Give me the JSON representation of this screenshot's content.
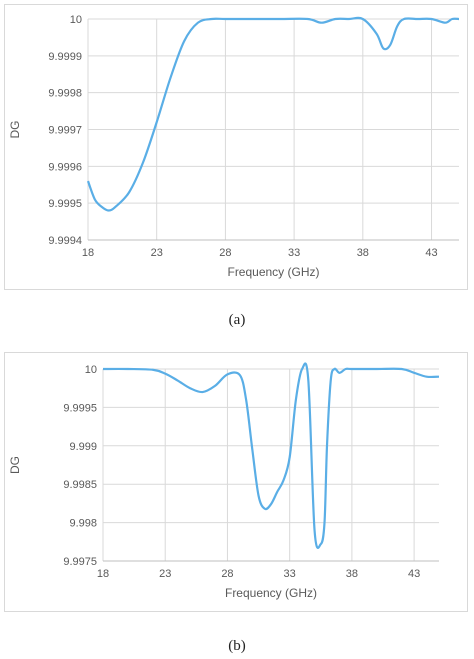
{
  "chart_data": [
    {
      "type": "line",
      "xlabel": "Frequency (GHz)",
      "ylabel": "DG",
      "xlim": [
        18,
        45
      ],
      "ylim": [
        9.9994,
        10
      ],
      "xticks": [
        18,
        23,
        28,
        33,
        38,
        43
      ],
      "yticks": [
        9.9994,
        9.9995,
        9.9996,
        9.9997,
        9.9998,
        9.9999,
        10
      ],
      "ytick_labels": [
        "9.9994",
        "9.9995",
        "9.9996",
        "9.9997",
        "9.9998",
        "9.9999",
        "10"
      ],
      "grid": true,
      "color": "#5aaee6",
      "series": [
        {
          "x": [
            18,
            18.5,
            19,
            19.5,
            20,
            21,
            22,
            23,
            24,
            25,
            26,
            27,
            28,
            30,
            32,
            34,
            35,
            36,
            37,
            38,
            39,
            39.5,
            40,
            40.5,
            41,
            42,
            43,
            44,
            44.5,
            45
          ],
          "y": [
            9.99956,
            9.99951,
            9.99949,
            9.99948,
            9.99949,
            9.99953,
            9.99961,
            9.99972,
            9.99984,
            9.99994,
            9.99999,
            10,
            10,
            10,
            10,
            10,
            9.99999,
            10,
            10,
            10,
            9.99996,
            9.99992,
            9.99993,
            9.99998,
            10,
            10,
            10,
            9.99999,
            10,
            10
          ]
        }
      ],
      "caption": "(a)"
    },
    {
      "type": "line",
      "xlabel": "Frequency (GHz)",
      "ylabel": "DG",
      "xlim": [
        18,
        45
      ],
      "ylim": [
        9.9975,
        10
      ],
      "xticks": [
        18,
        23,
        28,
        33,
        38,
        43
      ],
      "yticks": [
        9.9975,
        9.998,
        9.9985,
        9.999,
        9.9995,
        10
      ],
      "ytick_labels": [
        "9.9975",
        "9.998",
        "9.9985",
        "9.999",
        "9.9995",
        "10"
      ],
      "grid": true,
      "color": "#5aaee6",
      "series": [
        {
          "x": [
            18,
            20,
            22,
            23,
            24,
            25,
            26,
            27,
            28,
            29,
            29.5,
            30,
            30.5,
            31,
            31.5,
            32,
            32.5,
            33,
            33.5,
            34,
            34.5,
            35,
            35.5,
            35.8,
            36,
            36.3,
            36.6,
            37,
            37.5,
            38,
            40,
            42,
            43,
            44,
            45
          ],
          "y": [
            10,
            10,
            9.99999,
            9.99994,
            9.99985,
            9.99975,
            9.9997,
            9.99978,
            9.99993,
            9.99992,
            9.9996,
            9.99895,
            9.99835,
            9.99818,
            9.99824,
            9.9984,
            9.99855,
            9.99885,
            9.9996,
            10,
            9.99985,
            9.9979,
            9.99772,
            9.998,
            9.999,
            9.99985,
            10,
            9.99995,
            10,
            10,
            10,
            10,
            9.99995,
            9.9999,
            9.9999
          ]
        }
      ],
      "caption": "(b)"
    }
  ]
}
